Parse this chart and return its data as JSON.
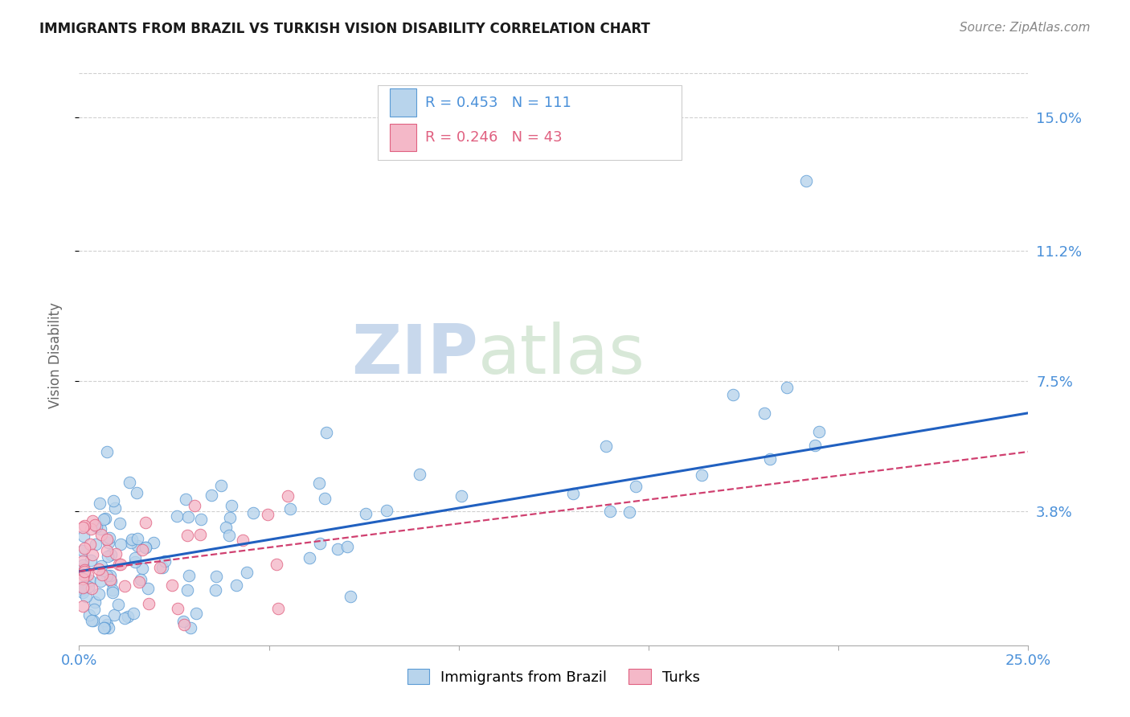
{
  "title": "IMMIGRANTS FROM BRAZIL VS TURKISH VISION DISABILITY CORRELATION CHART",
  "source": "Source: ZipAtlas.com",
  "ylabel": "Vision Disability",
  "xlim": [
    0.0,
    0.25
  ],
  "ylim": [
    0.0,
    0.165
  ],
  "xtick_positions": [
    0.0,
    0.05,
    0.1,
    0.15,
    0.2,
    0.25
  ],
  "xtick_labels": [
    "0.0%",
    "",
    "",
    "",
    "",
    "25.0%"
  ],
  "ytick_values": [
    0.038,
    0.075,
    0.112,
    0.15
  ],
  "ytick_labels": [
    "3.8%",
    "7.5%",
    "11.2%",
    "15.0%"
  ],
  "watermark_zip": "ZIP",
  "watermark_atlas": "atlas",
  "series1_fill": "#b8d4ec",
  "series1_edge": "#5b9bd5",
  "series2_fill": "#f4b8c8",
  "series2_edge": "#e06080",
  "trend1_color": "#2060c0",
  "trend2_color": "#d04070",
  "legend_R1": "R = 0.453",
  "legend_N1": "N = 111",
  "legend_R2": "R = 0.246",
  "legend_N2": "N = 43",
  "legend_label1": "Immigrants from Brazil",
  "legend_label2": "Turks",
  "grid_color": "#d0d0d0",
  "title_color": "#1a1a1a",
  "source_color": "#888888",
  "axis_color": "#4a90d9",
  "ylabel_color": "#666666",
  "trend1_y0": 0.021,
  "trend1_y1": 0.066,
  "trend2_y0": 0.021,
  "trend2_y1": 0.055
}
